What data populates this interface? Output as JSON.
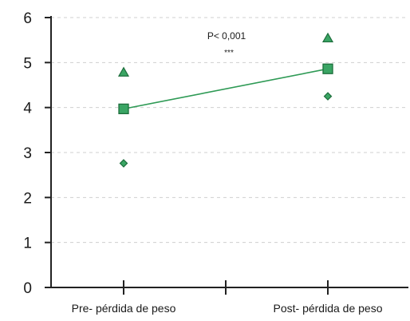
{
  "chart_data": {
    "type": "line",
    "categories": [
      "Pre- pérdida de peso",
      "Post- pérdida de peso"
    ],
    "ylim": [
      0,
      6
    ],
    "yticks": [
      "0",
      "1",
      "2",
      "3",
      "4",
      "5",
      "6"
    ],
    "grid": "horizontal dashed",
    "series": [
      {
        "marker": "square",
        "values": [
          3.97,
          4.86
        ],
        "connected": true
      },
      {
        "marker": "triangle",
        "values": [
          4.78,
          5.54
        ],
        "connected": false
      },
      {
        "marker": "diamond",
        "values": [
          2.76,
          4.25
        ],
        "connected": false
      }
    ],
    "annotation": {
      "text": "P< 0,001",
      "stars": "***"
    },
    "colors": {
      "fill": "#3aa564",
      "stroke": "#1d6e3c",
      "line": "#2e9a55",
      "axis": "#222222",
      "grid": "#cfcfcf"
    }
  }
}
